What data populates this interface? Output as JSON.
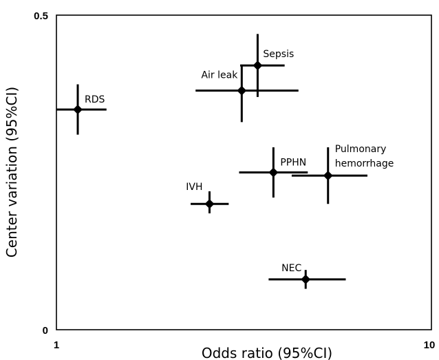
{
  "chart_data": {
    "type": "scatter",
    "xlabel": "Odds ratio (95%CI)",
    "ylabel": "Center variation (95%CI)",
    "x_scale": "log",
    "xlim": [
      1,
      10
    ],
    "ylim": [
      0,
      0.5
    ],
    "x_ticks": [
      "1",
      "10"
    ],
    "y_ticks": [
      "0",
      "0.5"
    ],
    "grid": false,
    "points": [
      {
        "label": "RDS",
        "x": 1.14,
        "x_low": 1.0,
        "x_high": 1.36,
        "y": 0.35,
        "y_low": 0.31,
        "y_high": 0.39
      },
      {
        "label": "Sepsis",
        "x": 3.44,
        "x_low": 3.09,
        "x_high": 4.06,
        "y": 0.42,
        "y_low": 0.37,
        "y_high": 0.47
      },
      {
        "label": "Air leak",
        "x": 3.12,
        "x_low": 2.35,
        "x_high": 4.42,
        "y": 0.38,
        "y_low": 0.33,
        "y_high": 0.42
      },
      {
        "label": "PPHN",
        "x": 3.79,
        "x_low": 3.07,
        "x_high": 4.68,
        "y": 0.25,
        "y_low": 0.21,
        "y_high": 0.29
      },
      {
        "label": "Pulmonary hemorrhage",
        "x": 5.3,
        "x_low": 4.24,
        "x_high": 6.75,
        "y": 0.245,
        "y_low": 0.2,
        "y_high": 0.29
      },
      {
        "label": "IVH",
        "x": 2.56,
        "x_low": 2.28,
        "x_high": 2.88,
        "y": 0.2,
        "y_low": 0.185,
        "y_high": 0.22
      },
      {
        "label": "NEC",
        "x": 4.62,
        "x_low": 3.68,
        "x_high": 5.91,
        "y": 0.08,
        "y_low": 0.065,
        "y_high": 0.095
      }
    ],
    "marker": "diamond",
    "color": "#000000"
  }
}
